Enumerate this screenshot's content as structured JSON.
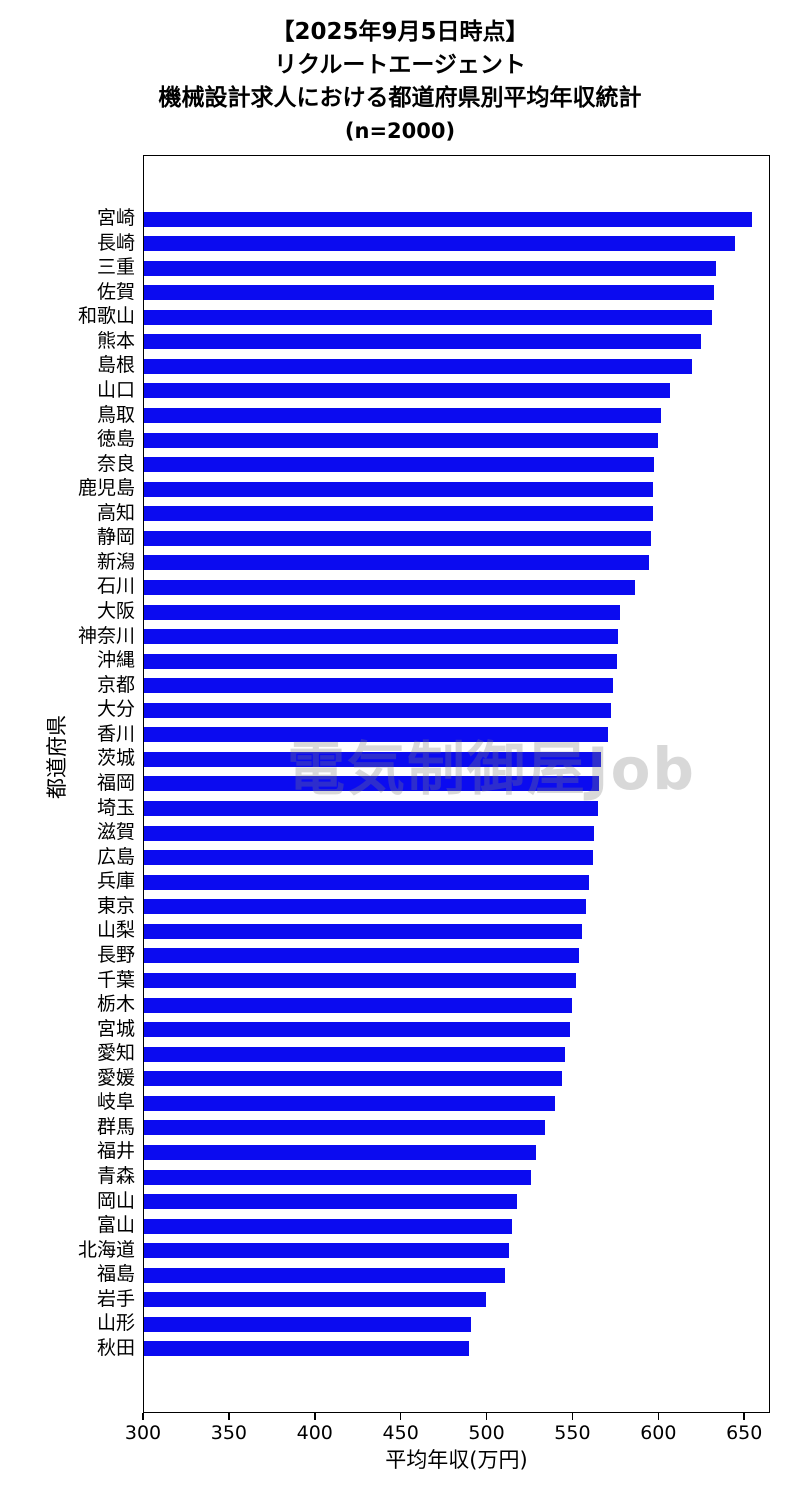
{
  "title": {
    "line1": "【2025年9月5日時点】",
    "line2": "リクルートエージェント",
    "line3": "機械設計求人における都道府県別平均年収統計",
    "line4": "(n=2000)"
  },
  "watermark": {
    "text": "電気制御屋Job"
  },
  "chart_data": {
    "type": "bar",
    "orientation": "horizontal",
    "title": "【2025年9月5日時点】 リクルートエージェント 機械設計求人における都道府県別平均年収統計 (n=2000)",
    "xlabel": "平均年収(万円)",
    "ylabel": "都道府県",
    "xlim": [
      300,
      665
    ],
    "xticks": [
      300,
      350,
      400,
      450,
      500,
      550,
      600,
      650
    ],
    "bar_color": "#0b0bf0",
    "grid": false,
    "legend": "none",
    "categories": [
      "宮崎",
      "長崎",
      "三重",
      "佐賀",
      "和歌山",
      "熊本",
      "島根",
      "山口",
      "鳥取",
      "徳島",
      "奈良",
      "鹿児島",
      "高知",
      "静岡",
      "新潟",
      "石川",
      "大阪",
      "神奈川",
      "沖縄",
      "京都",
      "大分",
      "香川",
      "茨城",
      "福岡",
      "埼玉",
      "滋賀",
      "広島",
      "兵庫",
      "東京",
      "山梨",
      "長野",
      "千葉",
      "栃木",
      "宮城",
      "愛知",
      "愛媛",
      "岐阜",
      "群馬",
      "福井",
      "青森",
      "岡山",
      "富山",
      "北海道",
      "福島",
      "岩手",
      "山形",
      "秋田"
    ],
    "values": [
      655,
      645,
      634,
      633,
      632,
      625,
      620,
      607,
      602,
      600,
      598,
      597,
      597,
      596,
      595,
      587,
      578,
      577,
      576,
      574,
      573,
      571,
      567,
      566,
      565,
      563,
      562,
      560,
      558,
      556,
      554,
      552,
      550,
      549,
      546,
      544,
      540,
      534,
      529,
      526,
      518,
      515,
      513,
      511,
      500,
      491,
      490
    ]
  }
}
